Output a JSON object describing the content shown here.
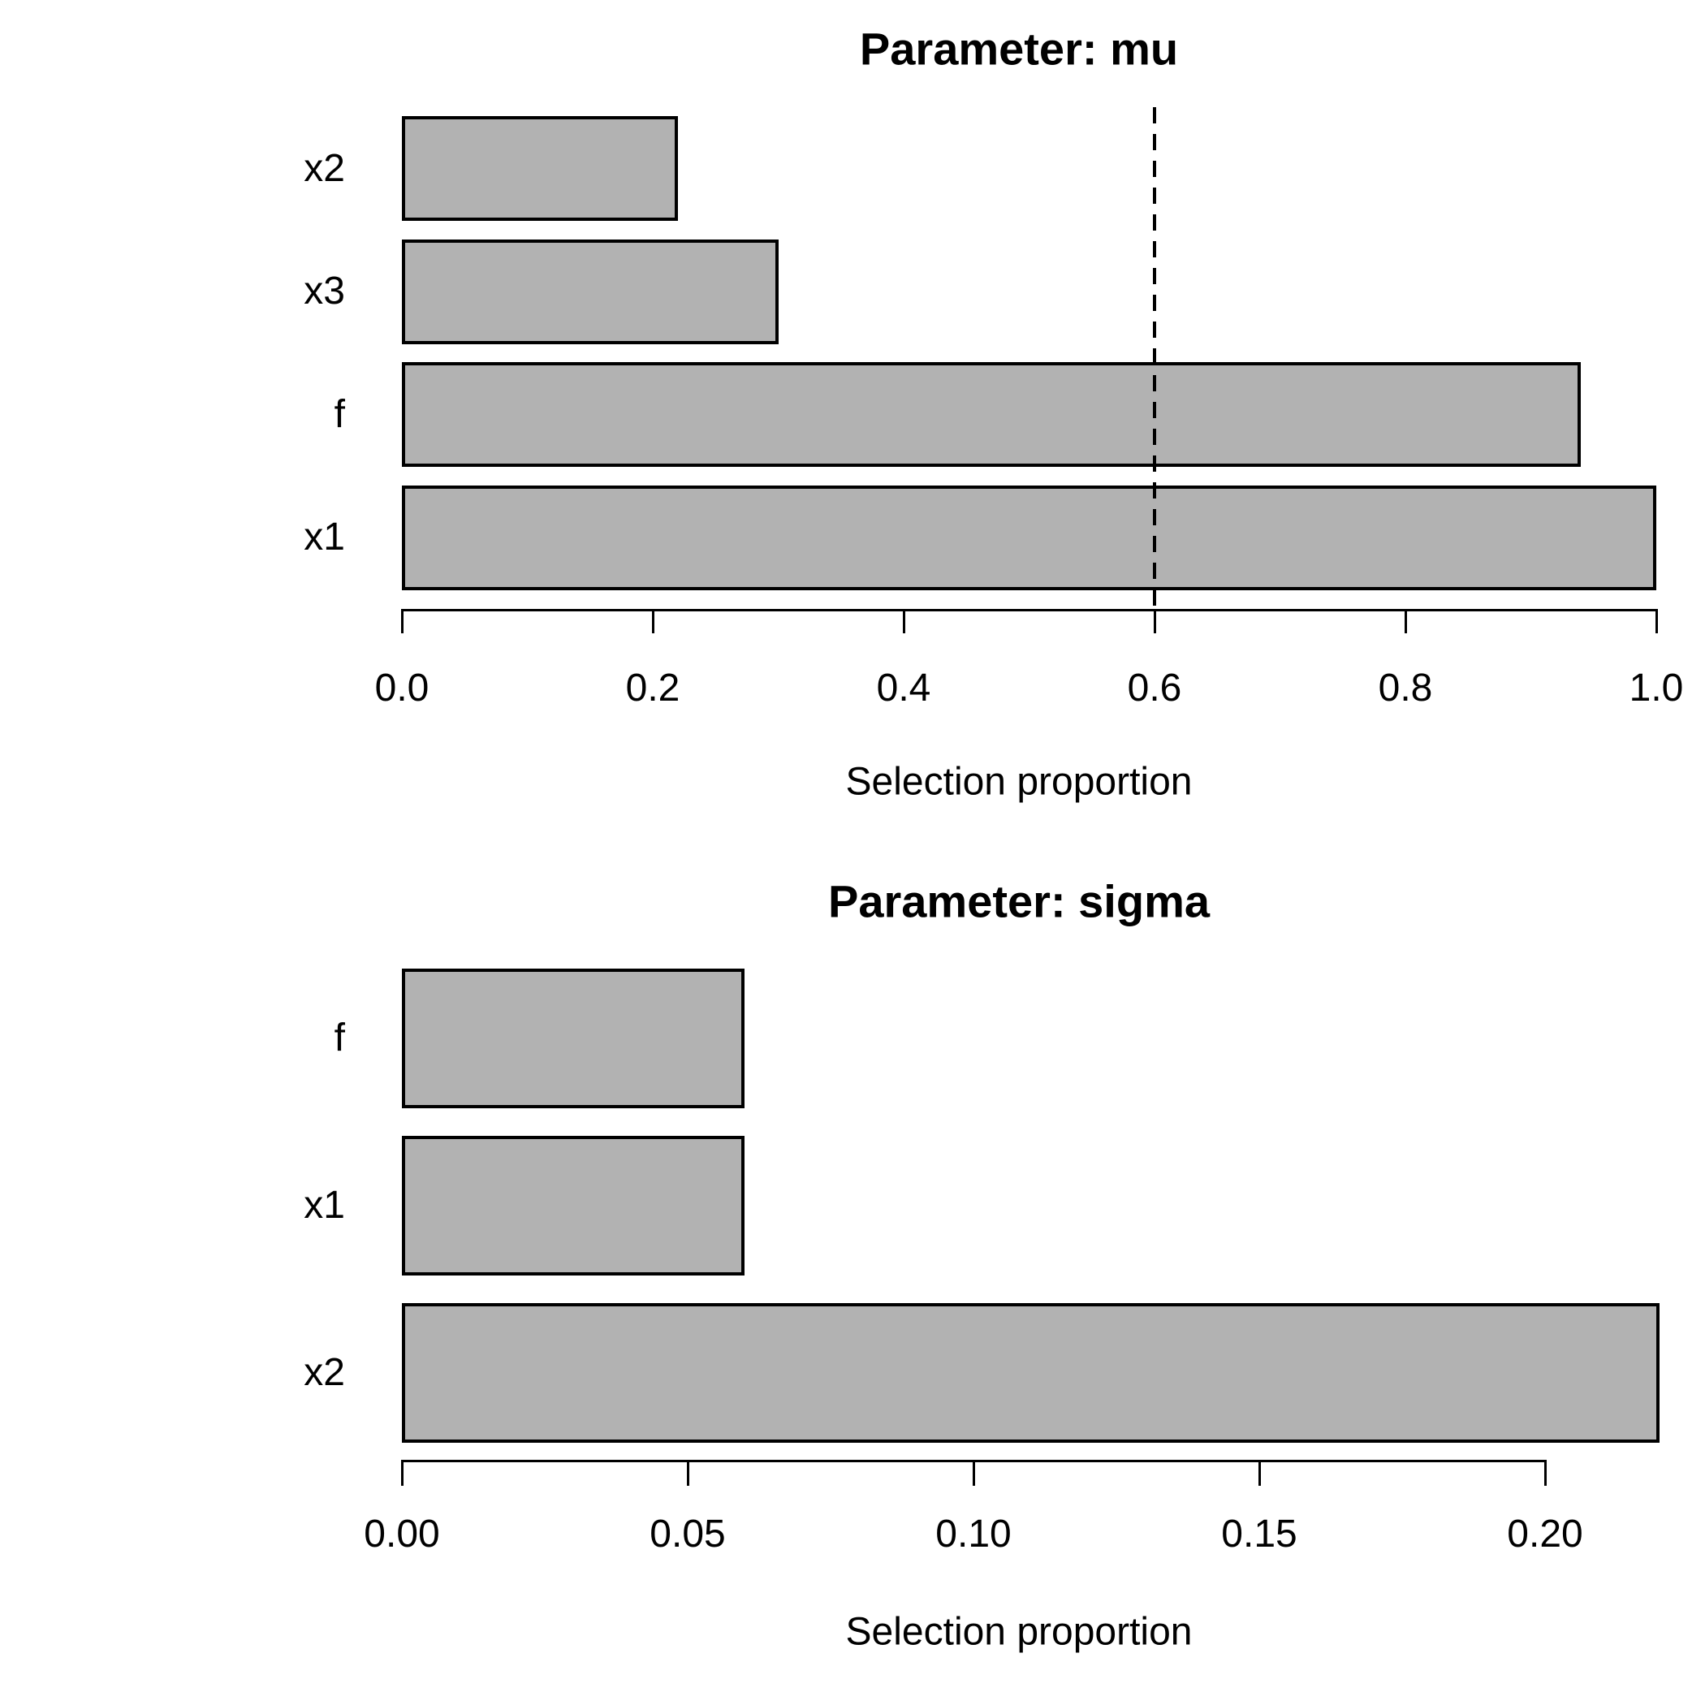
{
  "page": {
    "background": "#ffffff"
  },
  "chart_data": [
    {
      "type": "bar",
      "orientation": "horizontal",
      "title": "Parameter: mu",
      "xlabel": "Selection proportion",
      "categories": [
        "x2",
        "x3",
        "f",
        "x1"
      ],
      "values": [
        0.22,
        0.3,
        0.94,
        1.0
      ],
      "xlim": [
        0.0,
        1.0
      ],
      "xticks": [
        0.0,
        0.2,
        0.4,
        0.6,
        0.8,
        1.0
      ],
      "xtick_labels": [
        "0.0",
        "0.2",
        "0.4",
        "0.6",
        "0.8",
        "1.0"
      ],
      "threshold_line": {
        "value": 0.6,
        "style": "dashed",
        "color": "#000000"
      },
      "bar_color": "#b2b2b2",
      "bar_border_color": "#000000",
      "grid": false,
      "legend": false
    },
    {
      "type": "bar",
      "orientation": "horizontal",
      "title": "Parameter: sigma",
      "xlabel": "Selection proportion",
      "categories": [
        "f",
        "x1",
        "x2"
      ],
      "values": [
        0.06,
        0.06,
        0.22
      ],
      "xlim": [
        0.0,
        0.2
      ],
      "xticks": [
        0.0,
        0.05,
        0.1,
        0.15,
        0.2
      ],
      "xtick_labels": [
        "0.00",
        "0.05",
        "0.10",
        "0.15",
        "0.20"
      ],
      "threshold_line": null,
      "bar_color": "#b2b2b2",
      "bar_border_color": "#000000",
      "grid": false,
      "legend": false
    }
  ]
}
